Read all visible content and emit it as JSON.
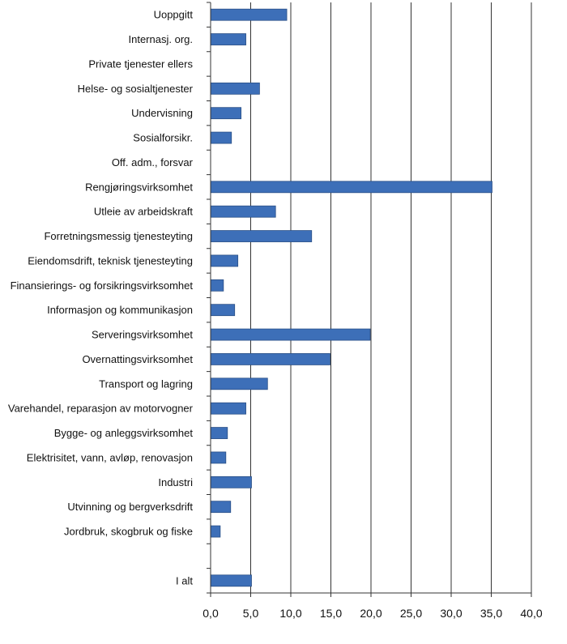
{
  "chart_data": {
    "type": "bar",
    "orientation": "horizontal",
    "title": "",
    "xlabel": "",
    "ylabel": "",
    "xlim": [
      0,
      40
    ],
    "x_ticks": [
      "0,0",
      "5,0",
      "10,0",
      "15,0",
      "20,0",
      "25,0",
      "30,0",
      "35,0",
      "40,0"
    ],
    "grid": "vertical",
    "legend": "none",
    "bar_color": "#3d6fb8",
    "bar_edge_color": "#2a4f86",
    "grid_color": "#333333",
    "categories": [
      "Uoppgitt",
      "Internasj. org.",
      "Private tjenester ellers",
      "Helse- og sosialtjenester",
      "Undervisning",
      "Sosialforsikr.",
      "Off. adm., forsvar",
      "Rengjøringsvirksomhet",
      "Utleie av arbeidskraft",
      "Forretningsmessig tjenesteyting",
      "Eiendomsdrift, teknisk tjenesteyting",
      "Finansierings- og forsikringsvirksomhet",
      "Informasjon og kommunikasjon",
      "Serveringsvirksomhet",
      "Overnattingsvirksomhet",
      "Transport og lagring",
      "Varehandel, reparasjon av motorvogner",
      "Bygge- og anleggsvirksomhet",
      "Elektrisitet, vann, avløp, renovasjon",
      "Industri",
      "Utvinning og bergverksdrift",
      "Jordbruk, skogbruk og fiske",
      "",
      "I alt"
    ],
    "values": [
      9.5,
      4.4,
      0,
      6.1,
      3.8,
      2.6,
      0,
      35.1,
      8.1,
      12.6,
      3.4,
      1.6,
      3.0,
      19.9,
      14.9,
      7.1,
      4.4,
      2.1,
      1.9,
      5.1,
      2.5,
      1.2,
      null,
      5.1
    ]
  }
}
